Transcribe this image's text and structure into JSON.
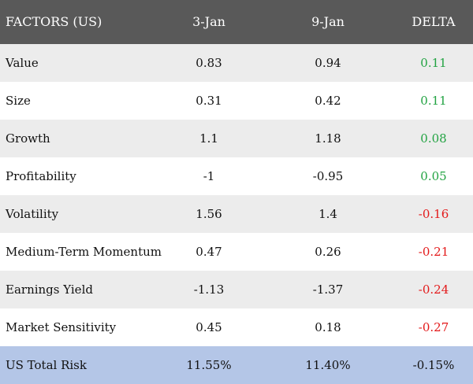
{
  "chart_data": {
    "type": "table",
    "columns": [
      "FACTORS (US)",
      "3-Jan",
      "9-Jan",
      "DELTA"
    ],
    "rows": [
      {
        "factor": "Value",
        "jan3": "0.83",
        "jan9": "0.94",
        "delta": "0.11",
        "delta_sign": "pos"
      },
      {
        "factor": "Size",
        "jan3": "0.31",
        "jan9": "0.42",
        "delta": "0.11",
        "delta_sign": "pos"
      },
      {
        "factor": "Growth",
        "jan3": "1.1",
        "jan9": "1.18",
        "delta": "0.08",
        "delta_sign": "pos"
      },
      {
        "factor": "Profitability",
        "jan3": "-1",
        "jan9": "-0.95",
        "delta": "0.05",
        "delta_sign": "pos"
      },
      {
        "factor": "Volatility",
        "jan3": "1.56",
        "jan9": "1.4",
        "delta": "-0.16",
        "delta_sign": "neg"
      },
      {
        "factor": "Medium-Term Momentum",
        "jan3": "0.47",
        "jan9": "0.26",
        "delta": "-0.21",
        "delta_sign": "neg"
      },
      {
        "factor": "Earnings Yield",
        "jan3": "-1.13",
        "jan9": "-1.37",
        "delta": "-0.24",
        "delta_sign": "neg"
      },
      {
        "factor": "Market Sensitivity",
        "jan3": "0.45",
        "jan9": "0.18",
        "delta": "-0.27",
        "delta_sign": "neg"
      }
    ],
    "total": {
      "factor": "US Total Risk",
      "jan3": "11.55%",
      "jan9": "11.40%",
      "delta": "-0.15%"
    }
  },
  "colors": {
    "header_bg": "#595959",
    "header_text": "#ffffff",
    "row_shade": "#ececec",
    "row_plain": "#ffffff",
    "total_bg": "#b4c6e7",
    "positive": "#22a342",
    "negative": "#e3191a"
  }
}
